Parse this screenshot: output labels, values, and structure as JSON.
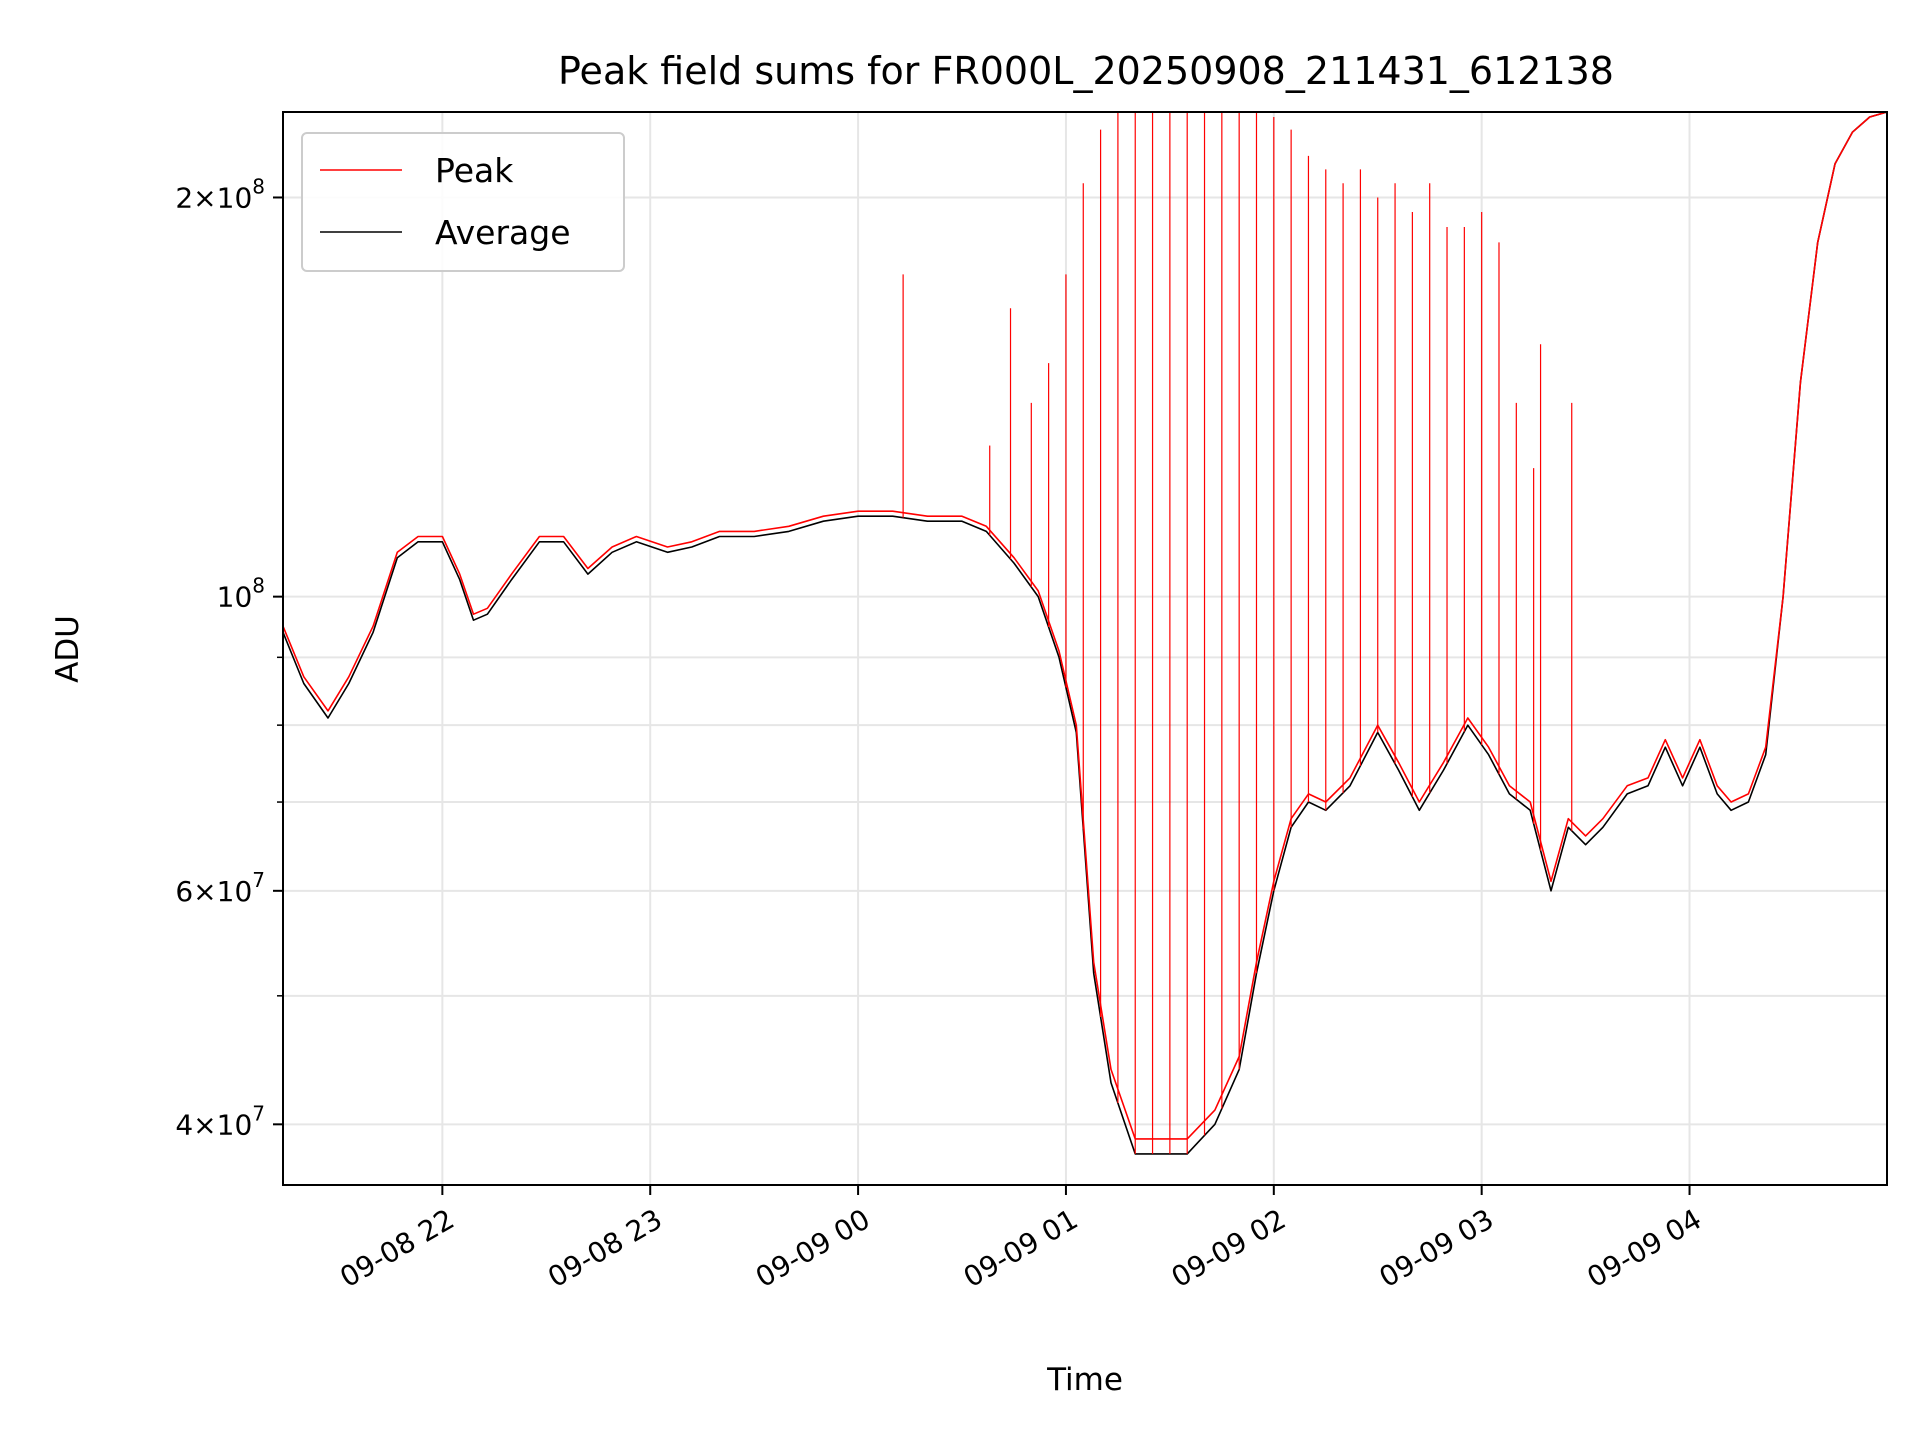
{
  "chart_data": {
    "type": "line",
    "title": "Peak field sums for FR000L_20250908_211431_612138",
    "xlabel": "Time",
    "ylabel": "ADU",
    "yscale": "log",
    "ylim": [
      36000000,
      232000000
    ],
    "xlim": [
      "2025-09-08 21:14",
      "2025-09-09 04:57"
    ],
    "grid": true,
    "legend_position": "upper-left",
    "x_ticks": [
      "2025-09-08 22:00",
      "2025-09-08 23:00",
      "2025-09-09 00:00",
      "2025-09-09 01:00",
      "2025-09-09 02:00",
      "2025-09-09 03:00",
      "2025-09-09 04:00"
    ],
    "x_tick_labels": [
      "09-08 22",
      "09-08 23",
      "09-09 00",
      "09-09 01",
      "09-09 02",
      "09-09 03",
      "09-09 04"
    ],
    "y_tick_labels": [
      {
        "value": 200000000,
        "mantissa": "2",
        "exponent": "8"
      },
      {
        "value": 100000000,
        "mantissa": "",
        "exponent": "8"
      },
      {
        "value": 60000000,
        "mantissa": "6",
        "exponent": "7"
      },
      {
        "value": 40000000,
        "mantissa": "4",
        "exponent": "7"
      }
    ],
    "y_minor_ticks": [
      90000000,
      80000000,
      70000000,
      50000000,
      30000000
    ],
    "series": [
      {
        "name": "Average",
        "color": "#000000",
        "x": [
          "2025-09-08 21:14",
          "2025-09-08 21:20",
          "2025-09-08 21:27",
          "2025-09-08 21:33",
          "2025-09-08 21:40",
          "2025-09-08 21:47",
          "2025-09-08 21:53",
          "2025-09-08 22:00",
          "2025-09-08 22:05",
          "2025-09-08 22:09",
          "2025-09-08 22:13",
          "2025-09-08 22:20",
          "2025-09-08 22:28",
          "2025-09-08 22:35",
          "2025-09-08 22:42",
          "2025-09-08 22:49",
          "2025-09-08 22:56",
          "2025-09-08 23:05",
          "2025-09-08 23:12",
          "2025-09-08 23:20",
          "2025-09-08 23:30",
          "2025-09-08 23:40",
          "2025-09-08 23:50",
          "2025-09-09 00:00",
          "2025-09-09 00:10",
          "2025-09-09 00:20",
          "2025-09-09 00:30",
          "2025-09-09 00:37",
          "2025-09-09 00:45",
          "2025-09-09 00:52",
          "2025-09-09 00:58",
          "2025-09-09 01:03",
          "2025-09-09 01:08",
          "2025-09-09 01:13",
          "2025-09-09 01:20",
          "2025-09-09 01:27",
          "2025-09-09 01:35",
          "2025-09-09 01:43",
          "2025-09-09 01:50",
          "2025-09-09 01:55",
          "2025-09-09 02:00",
          "2025-09-09 02:05",
          "2025-09-09 02:10",
          "2025-09-09 02:15",
          "2025-09-09 02:22",
          "2025-09-09 02:30",
          "2025-09-09 02:36",
          "2025-09-09 02:42",
          "2025-09-09 02:49",
          "2025-09-09 02:56",
          "2025-09-09 03:02",
          "2025-09-09 03:08",
          "2025-09-09 03:14",
          "2025-09-09 03:20",
          "2025-09-09 03:25",
          "2025-09-09 03:30",
          "2025-09-09 03:35",
          "2025-09-09 03:42",
          "2025-09-09 03:48",
          "2025-09-09 03:53",
          "2025-09-09 03:58",
          "2025-09-09 04:03",
          "2025-09-09 04:08",
          "2025-09-09 04:12",
          "2025-09-09 04:17",
          "2025-09-09 04:22",
          "2025-09-09 04:27",
          "2025-09-09 04:32",
          "2025-09-09 04:37",
          "2025-09-09 04:42",
          "2025-09-09 04:47",
          "2025-09-09 04:52",
          "2025-09-09 04:57"
        ],
        "y": [
          94000000,
          86000000,
          81000000,
          86000000,
          94000000,
          107000000,
          110000000,
          110000000,
          103000000,
          96000000,
          97000000,
          103000000,
          110000000,
          110000000,
          104000000,
          108000000,
          110000000,
          108000000,
          109000000,
          111000000,
          111000000,
          112000000,
          114000000,
          115000000,
          115000000,
          114000000,
          114000000,
          112000000,
          106000000,
          100000000,
          90000000,
          79000000,
          52000000,
          43000000,
          38000000,
          38000000,
          38000000,
          40000000,
          44000000,
          52000000,
          60000000,
          67000000,
          70000000,
          69000000,
          72000000,
          79000000,
          74000000,
          69000000,
          74000000,
          80000000,
          76000000,
          71000000,
          69000000,
          60000000,
          67000000,
          65000000,
          67000000,
          71000000,
          72000000,
          77000000,
          72000000,
          77000000,
          71000000,
          69000000,
          70000000,
          76000000,
          100000000,
          145000000,
          185000000,
          212000000,
          224000000,
          230000000,
          232000000
        ]
      },
      {
        "name": "Peak",
        "color": "#ff0000",
        "x": [
          "2025-09-08 21:14",
          "2025-09-08 21:20",
          "2025-09-08 21:27",
          "2025-09-08 21:33",
          "2025-09-08 21:40",
          "2025-09-08 21:47",
          "2025-09-08 21:53",
          "2025-09-08 22:00",
          "2025-09-08 22:05",
          "2025-09-08 22:09",
          "2025-09-08 22:13",
          "2025-09-08 22:20",
          "2025-09-08 22:28",
          "2025-09-08 22:35",
          "2025-09-08 22:42",
          "2025-09-08 22:49",
          "2025-09-08 22:56",
          "2025-09-08 23:05",
          "2025-09-08 23:12",
          "2025-09-08 23:20",
          "2025-09-08 23:30",
          "2025-09-08 23:40",
          "2025-09-08 23:50",
          "2025-09-09 00:00",
          "2025-09-09 00:10",
          "2025-09-09 00:20",
          "2025-09-09 00:30",
          "2025-09-09 00:37",
          "2025-09-09 00:45",
          "2025-09-09 00:52",
          "2025-09-09 00:58",
          "2025-09-09 01:03",
          "2025-09-09 01:08",
          "2025-09-09 01:13",
          "2025-09-09 01:20",
          "2025-09-09 01:27",
          "2025-09-09 01:35",
          "2025-09-09 01:43",
          "2025-09-09 01:50",
          "2025-09-09 01:55",
          "2025-09-09 02:00",
          "2025-09-09 02:05",
          "2025-09-09 02:10",
          "2025-09-09 02:15",
          "2025-09-09 02:22",
          "2025-09-09 02:30",
          "2025-09-09 02:36",
          "2025-09-09 02:42",
          "2025-09-09 02:49",
          "2025-09-09 02:56",
          "2025-09-09 03:02",
          "2025-09-09 03:08",
          "2025-09-09 03:14",
          "2025-09-09 03:20",
          "2025-09-09 03:25",
          "2025-09-09 03:30",
          "2025-09-09 03:35",
          "2025-09-09 03:42",
          "2025-09-09 03:48",
          "2025-09-09 03:53",
          "2025-09-09 03:58",
          "2025-09-09 04:03",
          "2025-09-09 04:08",
          "2025-09-09 04:12",
          "2025-09-09 04:17",
          "2025-09-09 04:22",
          "2025-09-09 04:27",
          "2025-09-09 04:32",
          "2025-09-09 04:37",
          "2025-09-09 04:42",
          "2025-09-09 04:47",
          "2025-09-09 04:52",
          "2025-09-09 04:57"
        ],
        "y": [
          95000000,
          87000000,
          82000000,
          87000000,
          95000000,
          108000000,
          111000000,
          111000000,
          104000000,
          97000000,
          98000000,
          104000000,
          111000000,
          111000000,
          105000000,
          109000000,
          111000000,
          109000000,
          110000000,
          112000000,
          112000000,
          113000000,
          115000000,
          116000000,
          116000000,
          115000000,
          115000000,
          113000000,
          107000000,
          101000000,
          91000000,
          80000000,
          53000000,
          44000000,
          39000000,
          39000000,
          39000000,
          41000000,
          45000000,
          53000000,
          61000000,
          68000000,
          71000000,
          70000000,
          73000000,
          80000000,
          75000000,
          70000000,
          75000000,
          81000000,
          77000000,
          72000000,
          70000000,
          61000000,
          68000000,
          66000000,
          68000000,
          72000000,
          73000000,
          78000000,
          73000000,
          78000000,
          72000000,
          70000000,
          71000000,
          77000000,
          100000000,
          145000000,
          185000000,
          212000000,
          224000000,
          230000000,
          232000000
        ]
      }
    ],
    "peak_spikes": [
      {
        "x": "2025-09-09 00:13",
        "y": 175000000
      },
      {
        "x": "2025-09-09 00:38",
        "y": 130000000
      },
      {
        "x": "2025-09-09 00:44",
        "y": 165000000
      },
      {
        "x": "2025-09-09 00:50",
        "y": 140000000
      },
      {
        "x": "2025-09-09 00:55",
        "y": 150000000
      },
      {
        "x": "2025-09-09 01:00",
        "y": 175000000
      },
      {
        "x": "2025-09-09 01:05",
        "y": 205000000
      },
      {
        "x": "2025-09-09 01:10",
        "y": 225000000
      },
      {
        "x": "2025-09-09 01:15",
        "y": 232000000
      },
      {
        "x": "2025-09-09 01:20",
        "y": 232000000
      },
      {
        "x": "2025-09-09 01:25",
        "y": 232000000
      },
      {
        "x": "2025-09-09 01:30",
        "y": 232000000
      },
      {
        "x": "2025-09-09 01:35",
        "y": 232000000
      },
      {
        "x": "2025-09-09 01:40",
        "y": 232000000
      },
      {
        "x": "2025-09-09 01:45",
        "y": 232000000
      },
      {
        "x": "2025-09-09 01:50",
        "y": 232000000
      },
      {
        "x": "2025-09-09 01:55",
        "y": 232000000
      },
      {
        "x": "2025-09-09 02:00",
        "y": 230000000
      },
      {
        "x": "2025-09-09 02:05",
        "y": 225000000
      },
      {
        "x": "2025-09-09 02:10",
        "y": 215000000
      },
      {
        "x": "2025-09-09 02:15",
        "y": 210000000
      },
      {
        "x": "2025-09-09 02:20",
        "y": 205000000
      },
      {
        "x": "2025-09-09 02:25",
        "y": 210000000
      },
      {
        "x": "2025-09-09 02:30",
        "y": 200000000
      },
      {
        "x": "2025-09-09 02:35",
        "y": 205000000
      },
      {
        "x": "2025-09-09 02:40",
        "y": 195000000
      },
      {
        "x": "2025-09-09 02:45",
        "y": 205000000
      },
      {
        "x": "2025-09-09 02:50",
        "y": 190000000
      },
      {
        "x": "2025-09-09 02:55",
        "y": 190000000
      },
      {
        "x": "2025-09-09 03:00",
        "y": 195000000
      },
      {
        "x": "2025-09-09 03:05",
        "y": 185000000
      },
      {
        "x": "2025-09-09 03:10",
        "y": 140000000
      },
      {
        "x": "2025-09-09 03:15",
        "y": 125000000
      },
      {
        "x": "2025-09-09 03:17",
        "y": 155000000
      },
      {
        "x": "2025-09-09 03:26",
        "y": 140000000
      }
    ],
    "legend": [
      {
        "label": "Peak",
        "color": "#ff0000"
      },
      {
        "label": "Average",
        "color": "#000000"
      }
    ]
  }
}
